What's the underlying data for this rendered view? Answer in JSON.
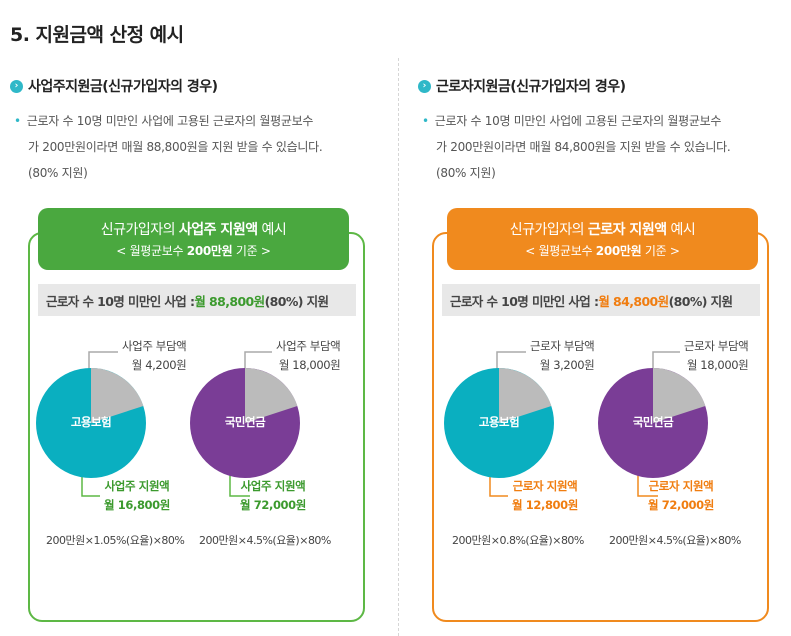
{
  "page_title": "5. 지원금액 산정 예시",
  "colors": {
    "green": "#4aa83f",
    "orange": "#f08a1e",
    "teal_pie": "#0aafc0",
    "purple_pie": "#7a3d96",
    "gray_slice": "#bbbbbb",
    "bullet": "#2fb8c8"
  },
  "left": {
    "heading": "사업주지원금(신규가입자의 경우)",
    "desc_line1": "근로자 수 10명 미만인 사업에 고용된 근로자의 월평균보수",
    "desc_line2": "가 200만원이라면 매월 88,800원을 지원 받을 수 있습니다.",
    "desc_line3": "(80% 지원)",
    "banner_title_pre": "신규가입자의 ",
    "banner_title_bold": "사업주 지원액",
    "banner_title_post": " 예시",
    "banner_sub_pre": "< 월평균보수 ",
    "banner_sub_bold": "200만원",
    "banner_sub_post": " 기준 >",
    "summary_pre": "근로자 수 10명 미만인 사업 : ",
    "summary_hl": "월 88,800원",
    "summary_post": "(80%) 지원",
    "pies": [
      {
        "label": "고용보험",
        "burden_line1": "사업주 부담액",
        "burden_line2": "월 4,200원",
        "support_line1": "사업주 지원액",
        "support_line2": "월 16,800원",
        "formula": "200만원×1.05%(요율)×80%",
        "support_fraction": 0.8
      },
      {
        "label": "국민연금",
        "burden_line1": "사업주 부담액",
        "burden_line2": "월 18,000원",
        "support_line1": "사업주 지원액",
        "support_line2": "월 72,000원",
        "formula": "200만원×4.5%(요율)×80%",
        "support_fraction": 0.8
      }
    ]
  },
  "right": {
    "heading": "근로자지원금(신규가입자의 경우)",
    "desc_line1": "근로자 수 10명 미만인 사업에 고용된 근로자의 월평균보수",
    "desc_line2": "가 200만원이라면 매월 84,800원을 지원 받을 수 있습니다.",
    "desc_line3": "(80% 지원)",
    "banner_title_pre": "신규가입자의 ",
    "banner_title_bold": "근로자 지원액",
    "banner_title_post": " 예시",
    "banner_sub_pre": "< 월평균보수 ",
    "banner_sub_bold": "200만원",
    "banner_sub_post": " 기준 >",
    "summary_pre": "근로자 수 10명 미만인 사업 : ",
    "summary_hl": "월 84,800원",
    "summary_post": "(80%) 지원",
    "pies": [
      {
        "label": "고용보험",
        "burden_line1": "근로자 부담액",
        "burden_line2": "월 3,200원",
        "support_line1": "근로자 지원액",
        "support_line2": "월 12,800원",
        "formula": "200만원×0.8%(요율)×80%",
        "support_fraction": 0.8
      },
      {
        "label": "국민연금",
        "burden_line1": "근로자 부담액",
        "burden_line2": "월 18,000원",
        "support_line1": "근로자 지원액",
        "support_line2": "월 72,000원",
        "formula": "200만원×4.5%(요율)×80%",
        "support_fraction": 0.8
      }
    ]
  }
}
